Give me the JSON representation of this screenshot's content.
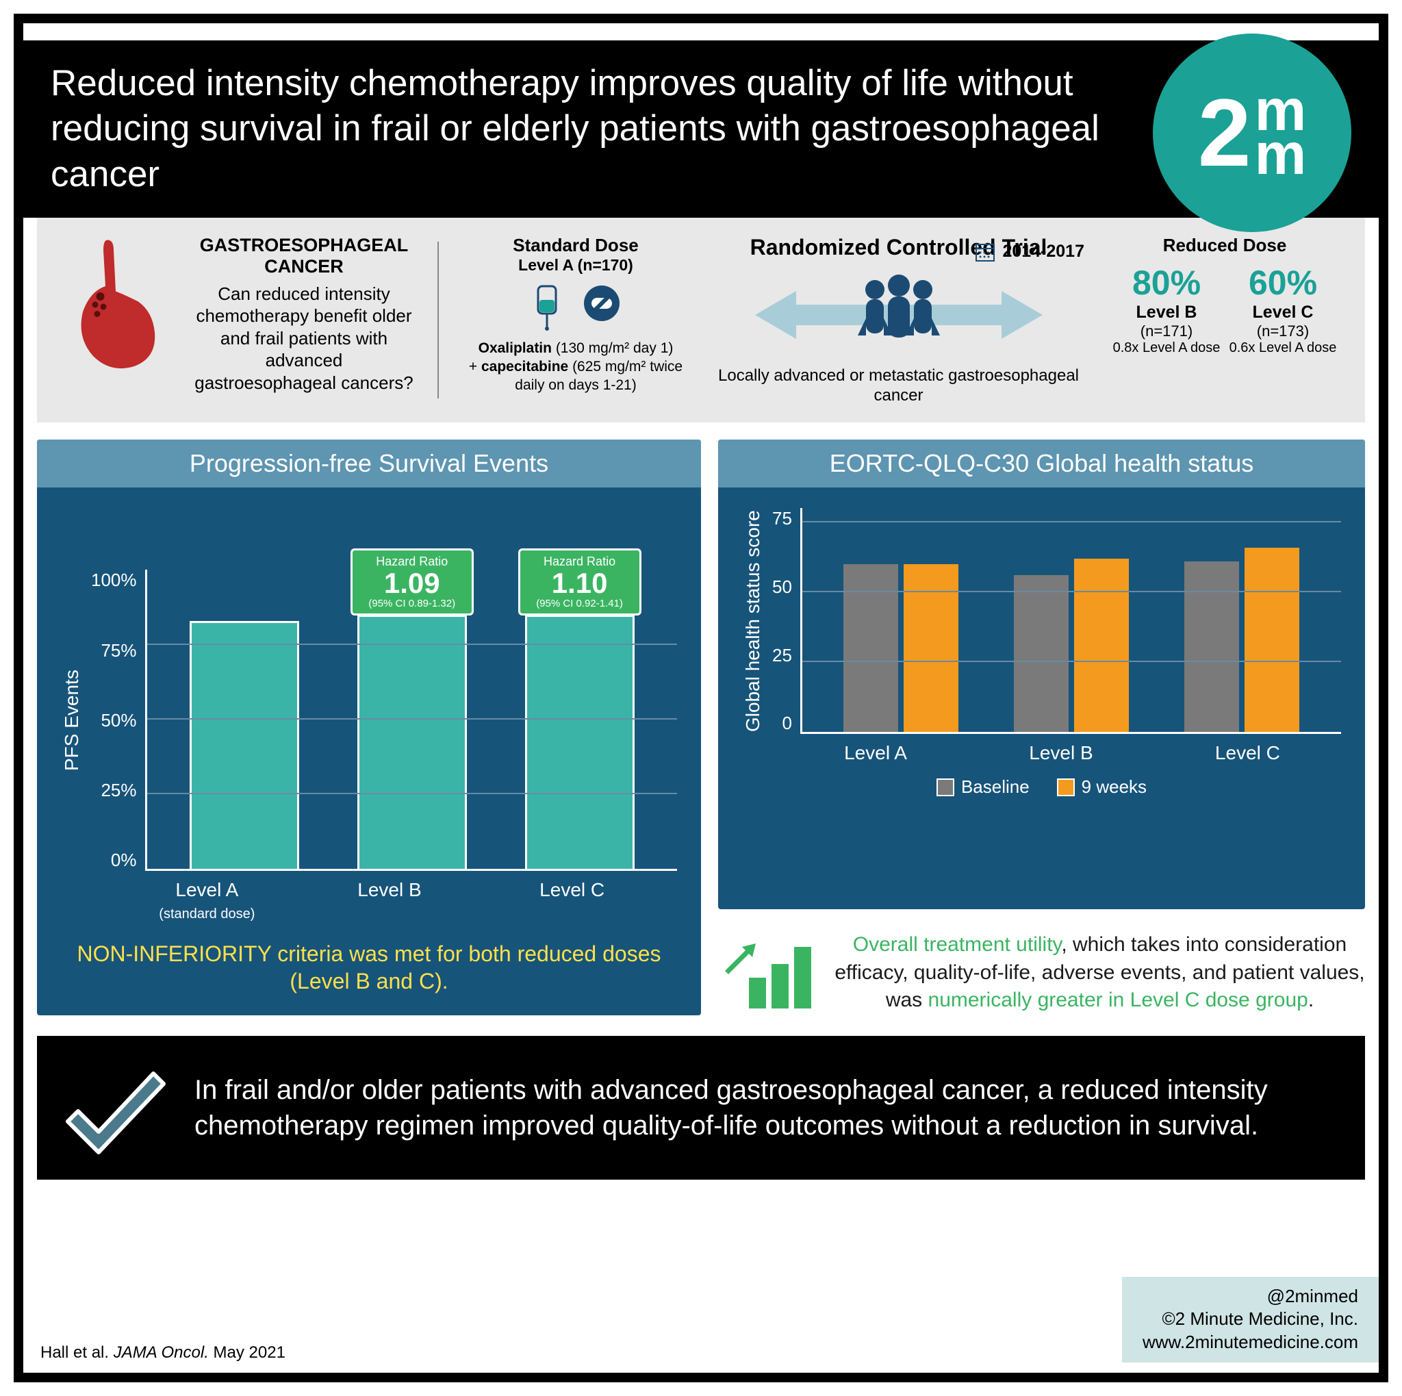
{
  "colors": {
    "black": "#000000",
    "white": "#ffffff",
    "teal_brand": "#1ba196",
    "teal_bar": "#3bb4a8",
    "panel_bg": "#17547a",
    "panel_header": "#5e95b1",
    "band_bg": "#e8e8e8",
    "green_badge": "#3bb462",
    "yellow": "#ffe04a",
    "gray_bar": "#7a7a7a",
    "orange_bar": "#f39a1f",
    "stomach_red": "#c02b2b",
    "navy_icon": "#1b4b73",
    "arrow_blue": "#a8cdd9",
    "credit_bg": "#cfe4e4"
  },
  "header": {
    "title": "Reduced intensity chemotherapy improves quality of life without reducing survival in frail or elderly patients with gastroesophageal cancer",
    "logo_2": "2",
    "logo_m1": "m",
    "logo_m2": "m"
  },
  "info": {
    "question_title": "GASTROESOPHAGEAL CANCER",
    "question_text": "Can reduced intensity chemotherapy benefit older and frail patients with advanced gastroesophageal cancers?",
    "standard_title": "Standard Dose",
    "standard_level": "Level A (n=170)",
    "drug1_name": "Oxaliplatin",
    "drug1_dose": "(130 mg/m² day 1)",
    "drug_plus": "+ ",
    "drug2_name": "capecitabine",
    "drug2_dose": "(625 mg/m² twice daily on days 1-21)",
    "trial_title": "Randomized Controlled Trial",
    "trial_text": "Locally advanced or metastatic gastroesophageal cancer",
    "years": "2014-2017",
    "reduced_title": "Reduced Dose",
    "reduced": [
      {
        "pct": "80%",
        "level": "Level B",
        "n": "(n=171)",
        "note": "0.8x Level A dose"
      },
      {
        "pct": "60%",
        "level": "Level C",
        "n": "(n=173)",
        "note": "0.6x Level A dose"
      }
    ]
  },
  "chart1": {
    "title": "Progression-free Survival Events",
    "ylabel": "PFS Events",
    "ymax": 100,
    "yticks": [
      "100%",
      "75%",
      "50%",
      "25%",
      "0%"
    ],
    "categories": [
      "Level A",
      "Level B",
      "Level C"
    ],
    "cat_sub": [
      "(standard dose)",
      "",
      ""
    ],
    "values": [
      83,
      85,
      85
    ],
    "hr": [
      null,
      {
        "label": "Hazard Ratio",
        "value": "1.09",
        "ci": "(95% CI 0.89-1.32)"
      },
      {
        "label": "Hazard Ratio",
        "value": "1.10",
        "ci": "(95% CI 0.92-1.41)"
      }
    ],
    "footer": "NON-INFERIORITY criteria was met for both reduced doses (Level B and C)."
  },
  "chart2": {
    "title": "EORTC-QLQ-C30 Global health status",
    "ylabel": "Global health status score",
    "ymax": 80,
    "yticks": [
      "75",
      "50",
      "25",
      "0"
    ],
    "categories": [
      "Level A",
      "Level B",
      "Level C"
    ],
    "series": [
      {
        "name": "Baseline",
        "color": "#7a7a7a",
        "values": [
          60,
          56,
          61
        ]
      },
      {
        "name": "9 weeks",
        "color": "#f39a1f",
        "values": [
          60,
          62,
          66
        ]
      }
    ]
  },
  "utility": {
    "lead": "Overall treatment utility",
    "mid": ", which takes into consideration efficacy, quality-of-life, adverse events, and patient values, was ",
    "tail": "numerically greater in Level C dose group",
    "end": "."
  },
  "conclusion": "In frail and/or older patients with advanced gastroesophageal cancer, a reduced intensity chemotherapy regimen improved quality-of-life outcomes without a reduction in survival.",
  "citation": {
    "authors": "Hall et al. ",
    "journal": "JAMA Oncol. ",
    "date": "May 2021"
  },
  "credits": {
    "handle": "@2minmed",
    "company": "©2 Minute Medicine, Inc.",
    "url": "www.2minutemedicine.com"
  }
}
